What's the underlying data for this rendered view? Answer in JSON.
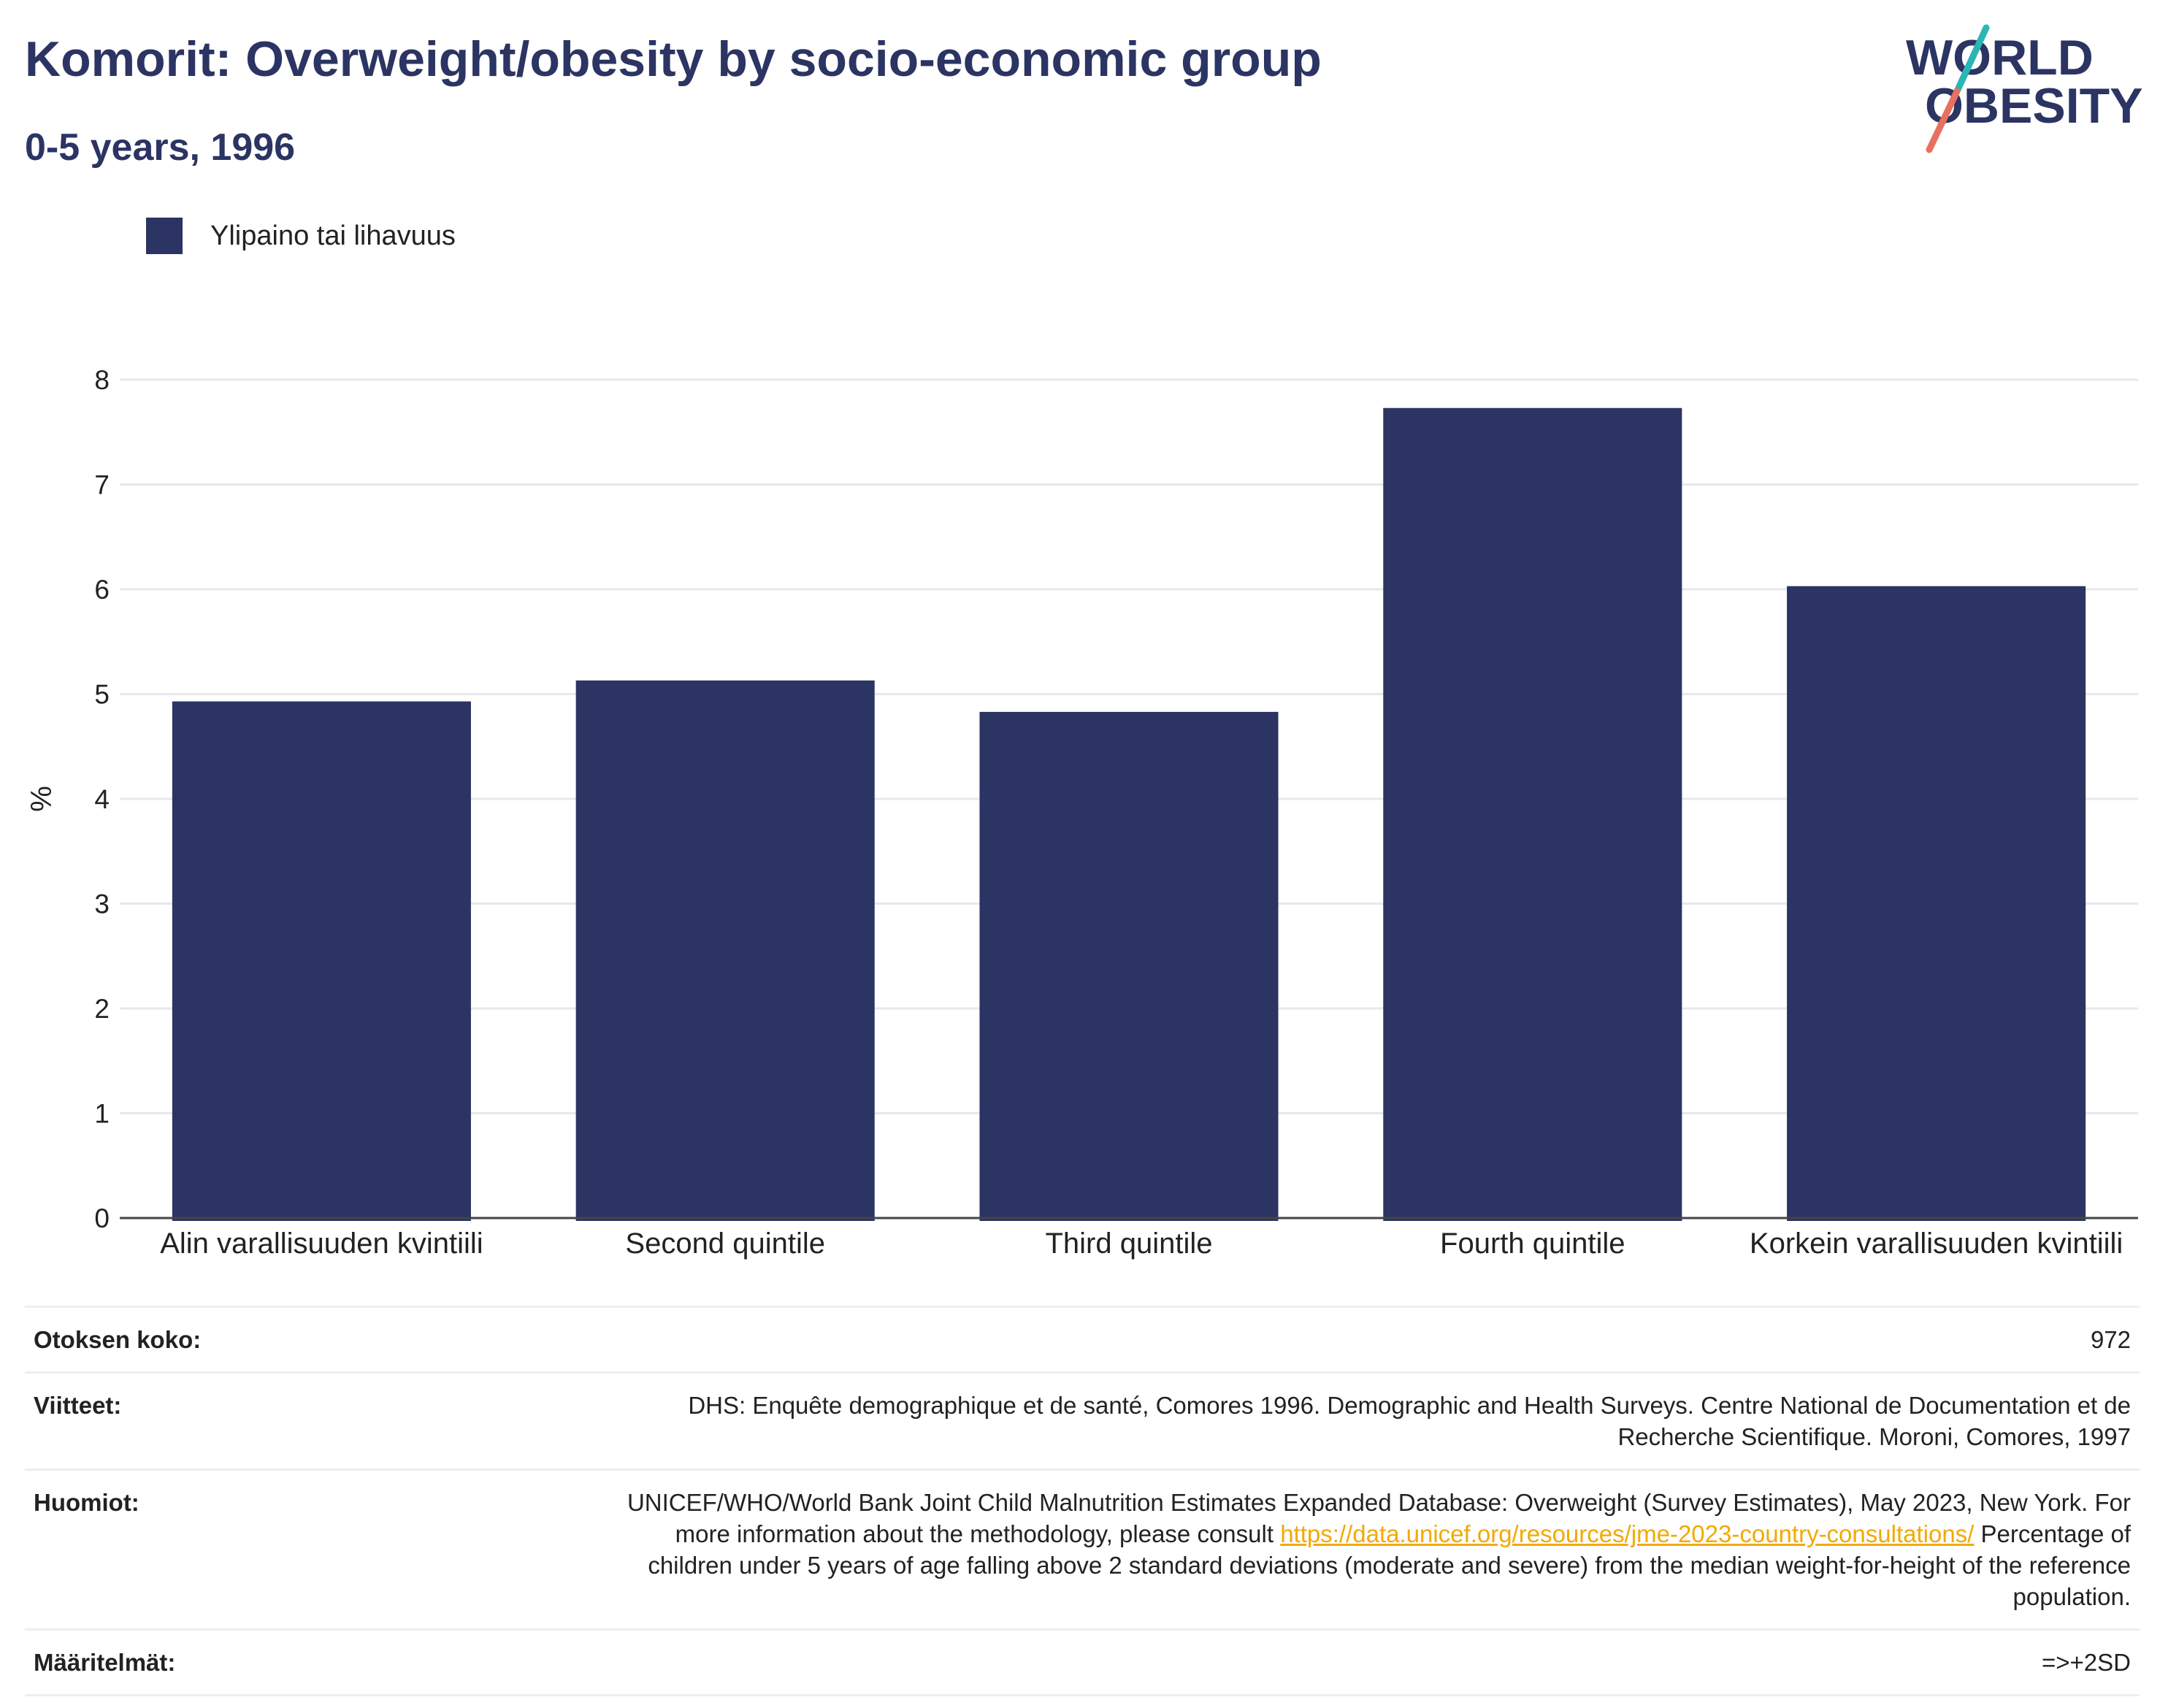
{
  "header": {
    "title": "Komorit: Overweight/obesity by socio-economic group",
    "subtitle": "0-5 years, 1996"
  },
  "logo": {
    "line1": "WORLD",
    "line2": "OBESITY",
    "colors": {
      "text": "#2b3462",
      "teal": "#2bb5b5",
      "coral": "#e8705f"
    }
  },
  "legend": {
    "label": "Ylipaino tai lihavuus",
    "color": "#2b3462"
  },
  "chart_data": {
    "type": "bar",
    "categories": [
      "Alin varallisuuden kvintiili",
      "Second quintile",
      "Third quintile",
      "Fourth quintile",
      "Korkein varallisuuden kvintiili"
    ],
    "series": [
      {
        "name": "Ylipaino tai lihavuus",
        "values": [
          4.93,
          5.13,
          4.83,
          7.73,
          6.03
        ],
        "color": "#2b3462"
      }
    ],
    "ylabel": "%",
    "xlabel": "",
    "ylim": [
      0,
      8
    ],
    "yticks": [
      "0",
      "1",
      "2",
      "3",
      "4",
      "5",
      "6",
      "7",
      "8"
    ],
    "grid": true,
    "legend_position": "top-left"
  },
  "info": {
    "sample_label": "Otoksen koko:",
    "sample_value": "972",
    "references_label": "Viitteet:",
    "references_value": "DHS: Enquête demographique et de santé, Comores 1996. Demographic and Health Surveys. Centre National de Documentation et de Recherche Scientifique. Moroni, Comores, 1997",
    "notes_label": "Huomiot:",
    "notes_text_1": "UNICEF/WHO/World Bank Joint Child Malnutrition Estimates Expanded Database: Overweight (Survey Estimates), May 2023, New York. For more information about the methodology, please consult ",
    "notes_link": "https://data.unicef.org/resources/jme-2023-country-consultations/",
    "notes_text_2": " Percentage of children under 5 years of age falling above 2 standard deviations (moderate and severe) from the median weight-for-height of the reference population.",
    "definitions_label": "Määritelmät:",
    "definitions_value": "=>+2SD"
  }
}
